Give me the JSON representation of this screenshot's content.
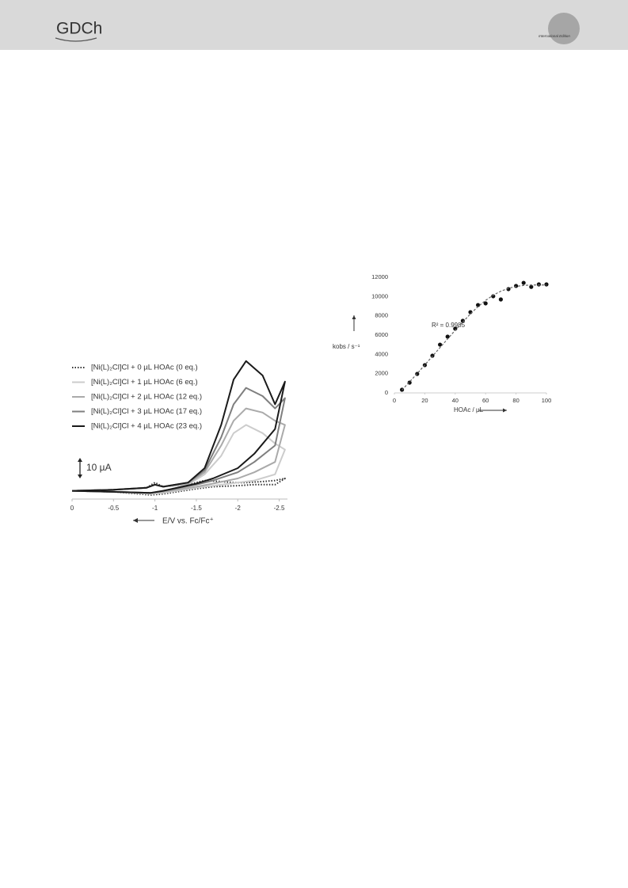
{
  "header": {
    "logo": "GDCh",
    "edition": "International Edition"
  },
  "chart_data": [
    {
      "type": "line",
      "xlabel": "E/V vs. Fc/Fc⁺",
      "xlim": [
        0,
        -2.6
      ],
      "xticks": [
        0,
        -0.5,
        -1,
        -1.5,
        -2,
        -2.5
      ],
      "ylim": [
        -4,
        66
      ],
      "scale_bar": {
        "value": 10,
        "label": "10 µA"
      },
      "series": [
        {
          "name": "[Ni(L)₂Cl]Cl + 0 µL HOAc (0 eq.)",
          "color": "#333333",
          "line_style": "dotted",
          "x": [
            0,
            -0.5,
            -0.9,
            -1,
            -1.1,
            -1.4,
            -1.6,
            -1.8,
            -1.95,
            -2.1,
            -2.3,
            -2.45,
            -2.57,
            -2.45,
            -2.2,
            -2,
            -1.7,
            -1.5,
            -1.1,
            -0.95,
            -0.5,
            0
          ],
          "values": [
            0,
            0.5,
            1.5,
            4,
            2,
            3,
            5,
            4.5,
            4,
            4,
            4.5,
            5,
            6,
            3,
            3,
            2.5,
            2,
            1,
            -1.5,
            -2,
            -0.5,
            0
          ]
        },
        {
          "name": "[Ni(L)₂Cl]Cl + 1 µL HOAc (6 eq.)",
          "color": "#cccccc",
          "line_style": "solid",
          "x": [
            0,
            -0.5,
            -0.9,
            -1,
            -1.1,
            -1.4,
            -1.6,
            -1.8,
            -1.95,
            -2.1,
            -2.3,
            -2.45,
            -2.57,
            -2.45,
            -2.2,
            -2,
            -1.7,
            -1.5,
            -1.1,
            -0.95,
            -0.5,
            0
          ],
          "values": [
            0,
            0.5,
            1.5,
            3,
            2,
            3,
            8,
            17,
            28,
            32,
            28,
            23,
            20,
            8,
            5,
            4,
            2.5,
            1.5,
            -1,
            -1.5,
            -0.5,
            0
          ]
        },
        {
          "name": "[Ni(L)₂Cl]Cl + 2 µL HOAc (12 eq.)",
          "color": "#aaaaaa",
          "line_style": "solid",
          "x": [
            0,
            -0.5,
            -0.9,
            -1,
            -1.1,
            -1.4,
            -1.6,
            -1.8,
            -1.95,
            -2.1,
            -2.3,
            -2.45,
            -2.57,
            -2.45,
            -2.2,
            -2,
            -1.7,
            -1.5,
            -1.1,
            -0.95,
            -0.5,
            0
          ],
          "values": [
            0,
            0.5,
            1.5,
            3,
            2,
            3.5,
            9,
            22,
            34,
            40,
            38,
            34,
            32,
            14,
            9,
            6,
            3.5,
            2,
            -0.5,
            -1,
            -0.5,
            0
          ]
        },
        {
          "name": "[Ni(L)₂Cl]Cl + 3 µL HOAc (17 eq.)",
          "color": "#7f7f7f",
          "line_style": "solid",
          "x": [
            0,
            -0.5,
            -0.9,
            -1,
            -1.1,
            -1.4,
            -1.6,
            -1.8,
            -1.95,
            -2.1,
            -2.3,
            -2.45,
            -2.57,
            -2.45,
            -2.2,
            -2,
            -1.7,
            -1.5,
            -1.1,
            -0.95,
            -0.5,
            0
          ],
          "values": [
            0,
            0.5,
            1.5,
            3,
            2,
            4,
            10,
            26,
            42,
            50,
            46,
            40,
            45,
            22,
            14,
            9,
            5,
            3,
            0,
            -1,
            -0.5,
            0
          ]
        },
        {
          "name": "[Ni(L)₂Cl]Cl + 4 µL HOAc (23 eq.)",
          "color": "#1a1a1a",
          "line_style": "solid",
          "x": [
            0,
            -0.5,
            -0.9,
            -1,
            -1.1,
            -1.4,
            -1.6,
            -1.8,
            -1.95,
            -2.1,
            -2.3,
            -2.45,
            -2.57,
            -2.45,
            -2.2,
            -2,
            -1.7,
            -1.5,
            -1.1,
            -0.95,
            -0.5,
            0
          ],
          "values": [
            0,
            0.5,
            1.5,
            3,
            2,
            4,
            11,
            32,
            54,
            63,
            56,
            42,
            53,
            30,
            18,
            11,
            6,
            3.5,
            0,
            -1,
            -0.5,
            0
          ]
        }
      ]
    },
    {
      "type": "scatter",
      "xlabel": "HOAc / µL",
      "ylabel": "kobs / s⁻¹",
      "annotation": "R² = 0.9985",
      "xlim": [
        0,
        100
      ],
      "xticks": [
        0,
        20,
        40,
        60,
        80,
        100
      ],
      "ylim": [
        0,
        12000
      ],
      "yticks": [
        0,
        2000,
        4000,
        6000,
        8000,
        10000,
        12000
      ],
      "series": [
        {
          "type": "scatter",
          "color": "#111111",
          "x": [
            5,
            10,
            15,
            20,
            25,
            30,
            35,
            40,
            45,
            50,
            55,
            60,
            65,
            70,
            75,
            80,
            85,
            90,
            95,
            100
          ],
          "values": [
            330,
            1070,
            1970,
            2880,
            3860,
            5010,
            5840,
            6660,
            7480,
            8380,
            9120,
            9290,
            10030,
            9700,
            10770,
            11100,
            11420,
            11000,
            11260,
            11260
          ]
        },
        {
          "type": "line",
          "color": "#666666",
          "line_style": "dashed",
          "x": [
            5,
            10,
            15,
            20,
            25,
            30,
            35,
            40,
            45,
            50,
            55,
            60,
            65,
            70,
            75,
            80,
            85,
            90,
            95,
            100
          ],
          "values": [
            300,
            1150,
            2000,
            2900,
            3800,
            4700,
            5600,
            6500,
            7350,
            8200,
            8950,
            9600,
            10150,
            10550,
            10850,
            11050,
            11150,
            11200,
            11200,
            11200
          ]
        }
      ]
    }
  ]
}
